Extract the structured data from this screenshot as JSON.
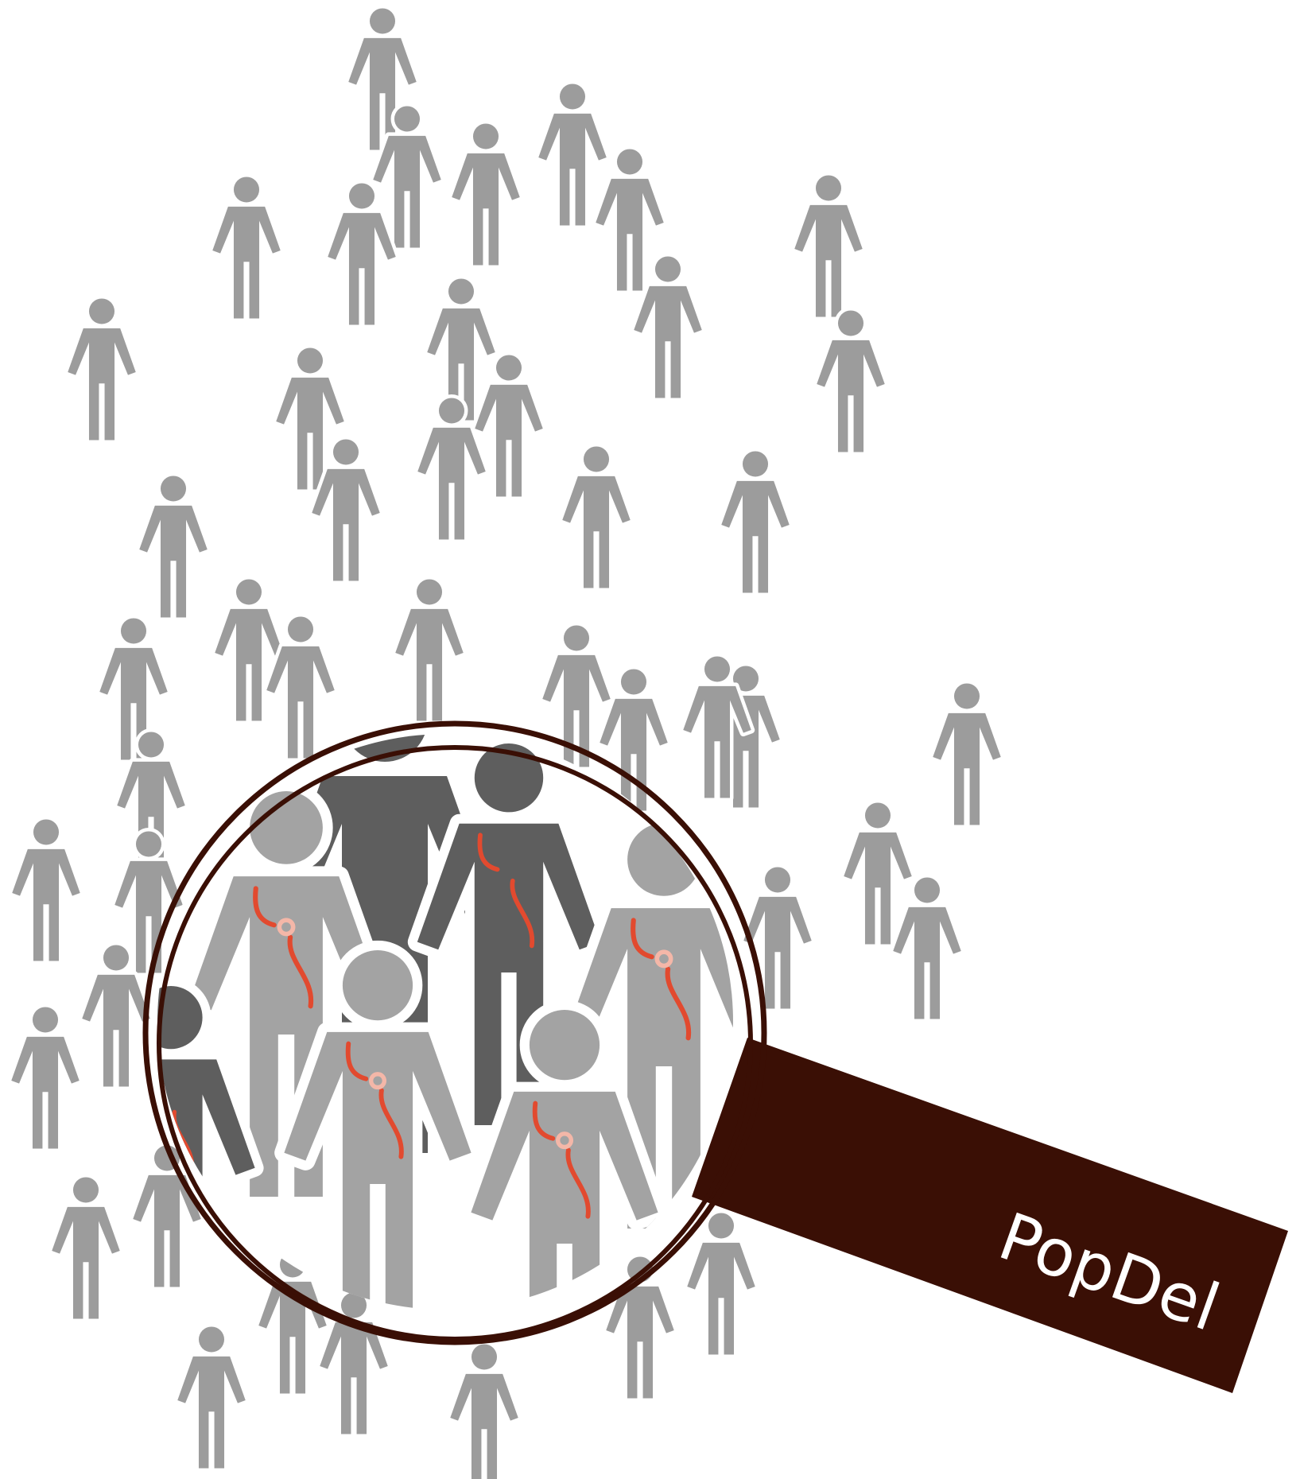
{
  "logo": {
    "wordmark": "PopDel"
  },
  "colors": {
    "background": "#ffffff",
    "crowd_person": "#9c9c9c",
    "magnified_person_light": "#a3a3a3",
    "magnified_person_dark": "#5e5e5e",
    "lens_ring": "#3a0f05",
    "handle": "#3a0f05",
    "dna_strand": "#e24a2f",
    "dna_gap_ring": "#f4b7a8",
    "wordmark": "#ffffff"
  },
  "icons": {
    "person": "person-icon",
    "magnifier": "magnifying-glass-icon",
    "dna": "chromosome-deletion-icon"
  }
}
